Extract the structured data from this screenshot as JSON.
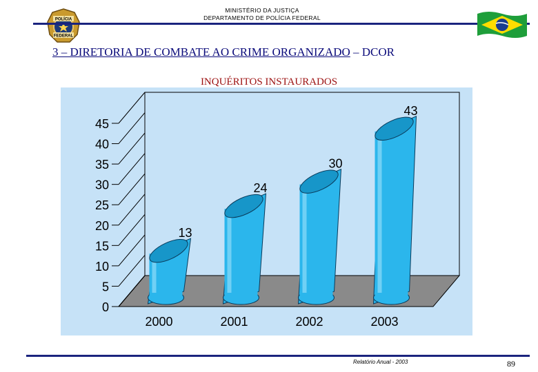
{
  "header": {
    "ministry_line1": "MINISTÉRIO DA JUSTIÇA",
    "ministry_line2": "DEPARTAMENTO DE POLÍCIA FEDERAL",
    "badge_line1": "POLÍCIA",
    "badge_line2": "FEDERAL"
  },
  "section": {
    "title": "3 – DIRETORIA DE COMBATE AO CRIME ORGANIZADO",
    "suffix": "– DCOR"
  },
  "footer": {
    "report": "Relatório Anual - 2003",
    "page": "89"
  },
  "colors": {
    "navy": "#1a237e",
    "bar": "#2bb6ec",
    "plot_background": "#c6e2f7",
    "floor": "#8a8a8a",
    "subtitle": "#9b0f0f"
  },
  "chart_data": {
    "type": "bar",
    "title": "INQUÉRITOS INSTAURADOS",
    "categories": [
      "2000",
      "2001",
      "2002",
      "2003"
    ],
    "values": [
      13,
      24,
      30,
      43
    ],
    "ylim": [
      0,
      45
    ],
    "yticks": [
      0,
      5,
      10,
      15,
      20,
      25,
      30,
      35,
      40,
      45
    ],
    "xlabel": "",
    "ylabel": "",
    "grid": false,
    "legend": "none",
    "style": "3d-cylinder"
  }
}
